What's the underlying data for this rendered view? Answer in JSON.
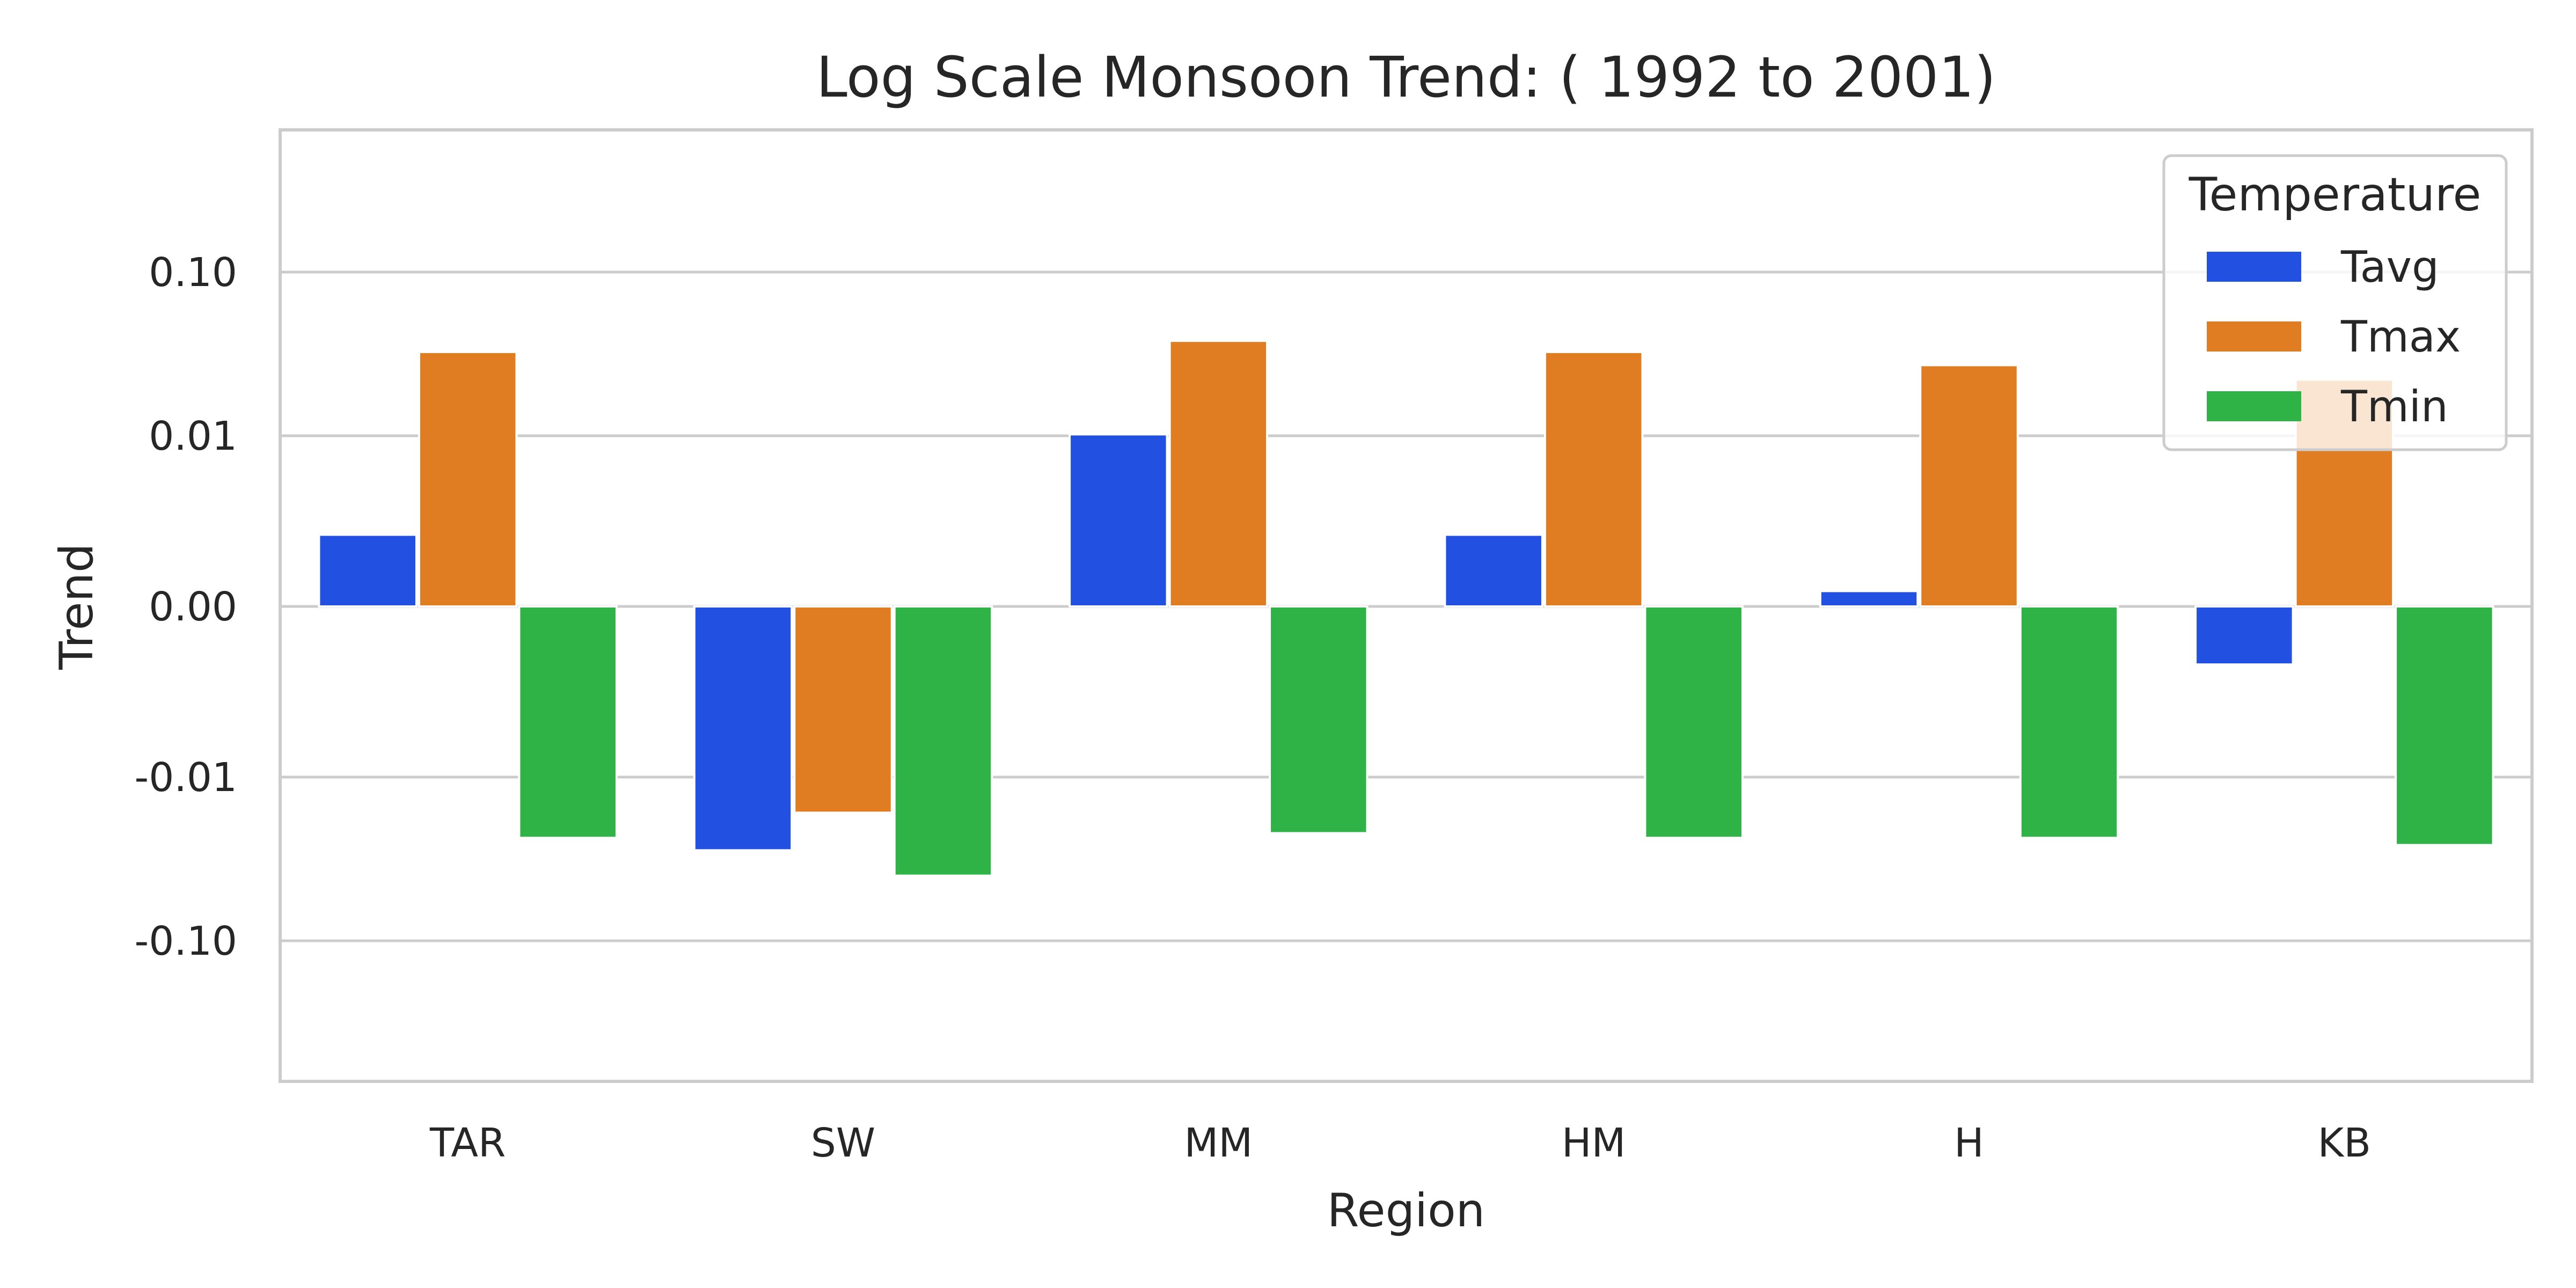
{
  "chart_data": {
    "type": "bar",
    "title": "Log Scale Monsoon Trend: ( 1992 to 2001)",
    "xlabel": "Region",
    "ylabel": "Trend",
    "yscale": "symlog",
    "ylim": [
      -0.7,
      0.7
    ],
    "yticks": [
      0.1,
      0.01,
      0.0,
      -0.01,
      -0.1
    ],
    "ytick_labels": [
      "0.10",
      "0.01",
      "0.00",
      "-0.01",
      "-0.10"
    ],
    "grid": true,
    "categories": [
      "TAR",
      "SW",
      "MM",
      "HM",
      "H",
      "KB"
    ],
    "legend": {
      "title": "Temperature",
      "placement": "upper right"
    },
    "series": [
      {
        "name": "Tavg",
        "color": "#2250e0",
        "values": [
          0.0042,
          -0.028,
          0.0102,
          0.0042,
          0.0009,
          -0.0034
        ]
      },
      {
        "name": "Tmax",
        "color": "#e07d22",
        "values": [
          0.0325,
          -0.0165,
          0.038,
          0.0325,
          0.027,
          0.022
        ]
      },
      {
        "name": "Tmin",
        "color": "#2fb346",
        "values": [
          -0.0235,
          -0.04,
          -0.022,
          -0.0235,
          -0.0235,
          -0.026
        ]
      }
    ]
  }
}
